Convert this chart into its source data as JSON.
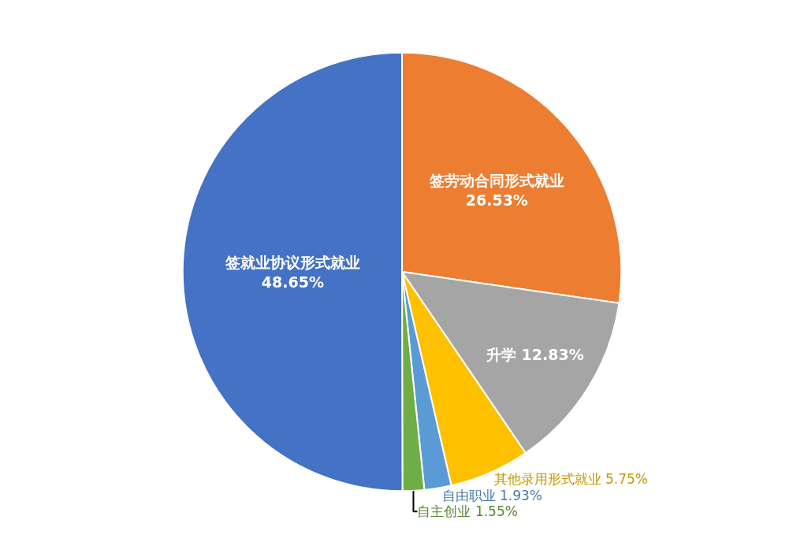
{
  "chart_data": {
    "type": "pie",
    "categories": [
      "签劳动合同形式就业",
      "升学",
      "其他录用形式就业",
      "自由职业",
      "自主创业",
      "签就业协议形式就业"
    ],
    "values": [
      26.53,
      12.83,
      5.75,
      1.93,
      1.55,
      48.65
    ],
    "colors": [
      "#ed7d31",
      "#a5a5a5",
      "#ffc000",
      "#5b9bd5",
      "#70ad47",
      "#4472c4"
    ],
    "value_labels": [
      "26.53%",
      "12.83%",
      "5.75%",
      "1.93%",
      "1.55%",
      "48.65%"
    ],
    "legend": false
  }
}
